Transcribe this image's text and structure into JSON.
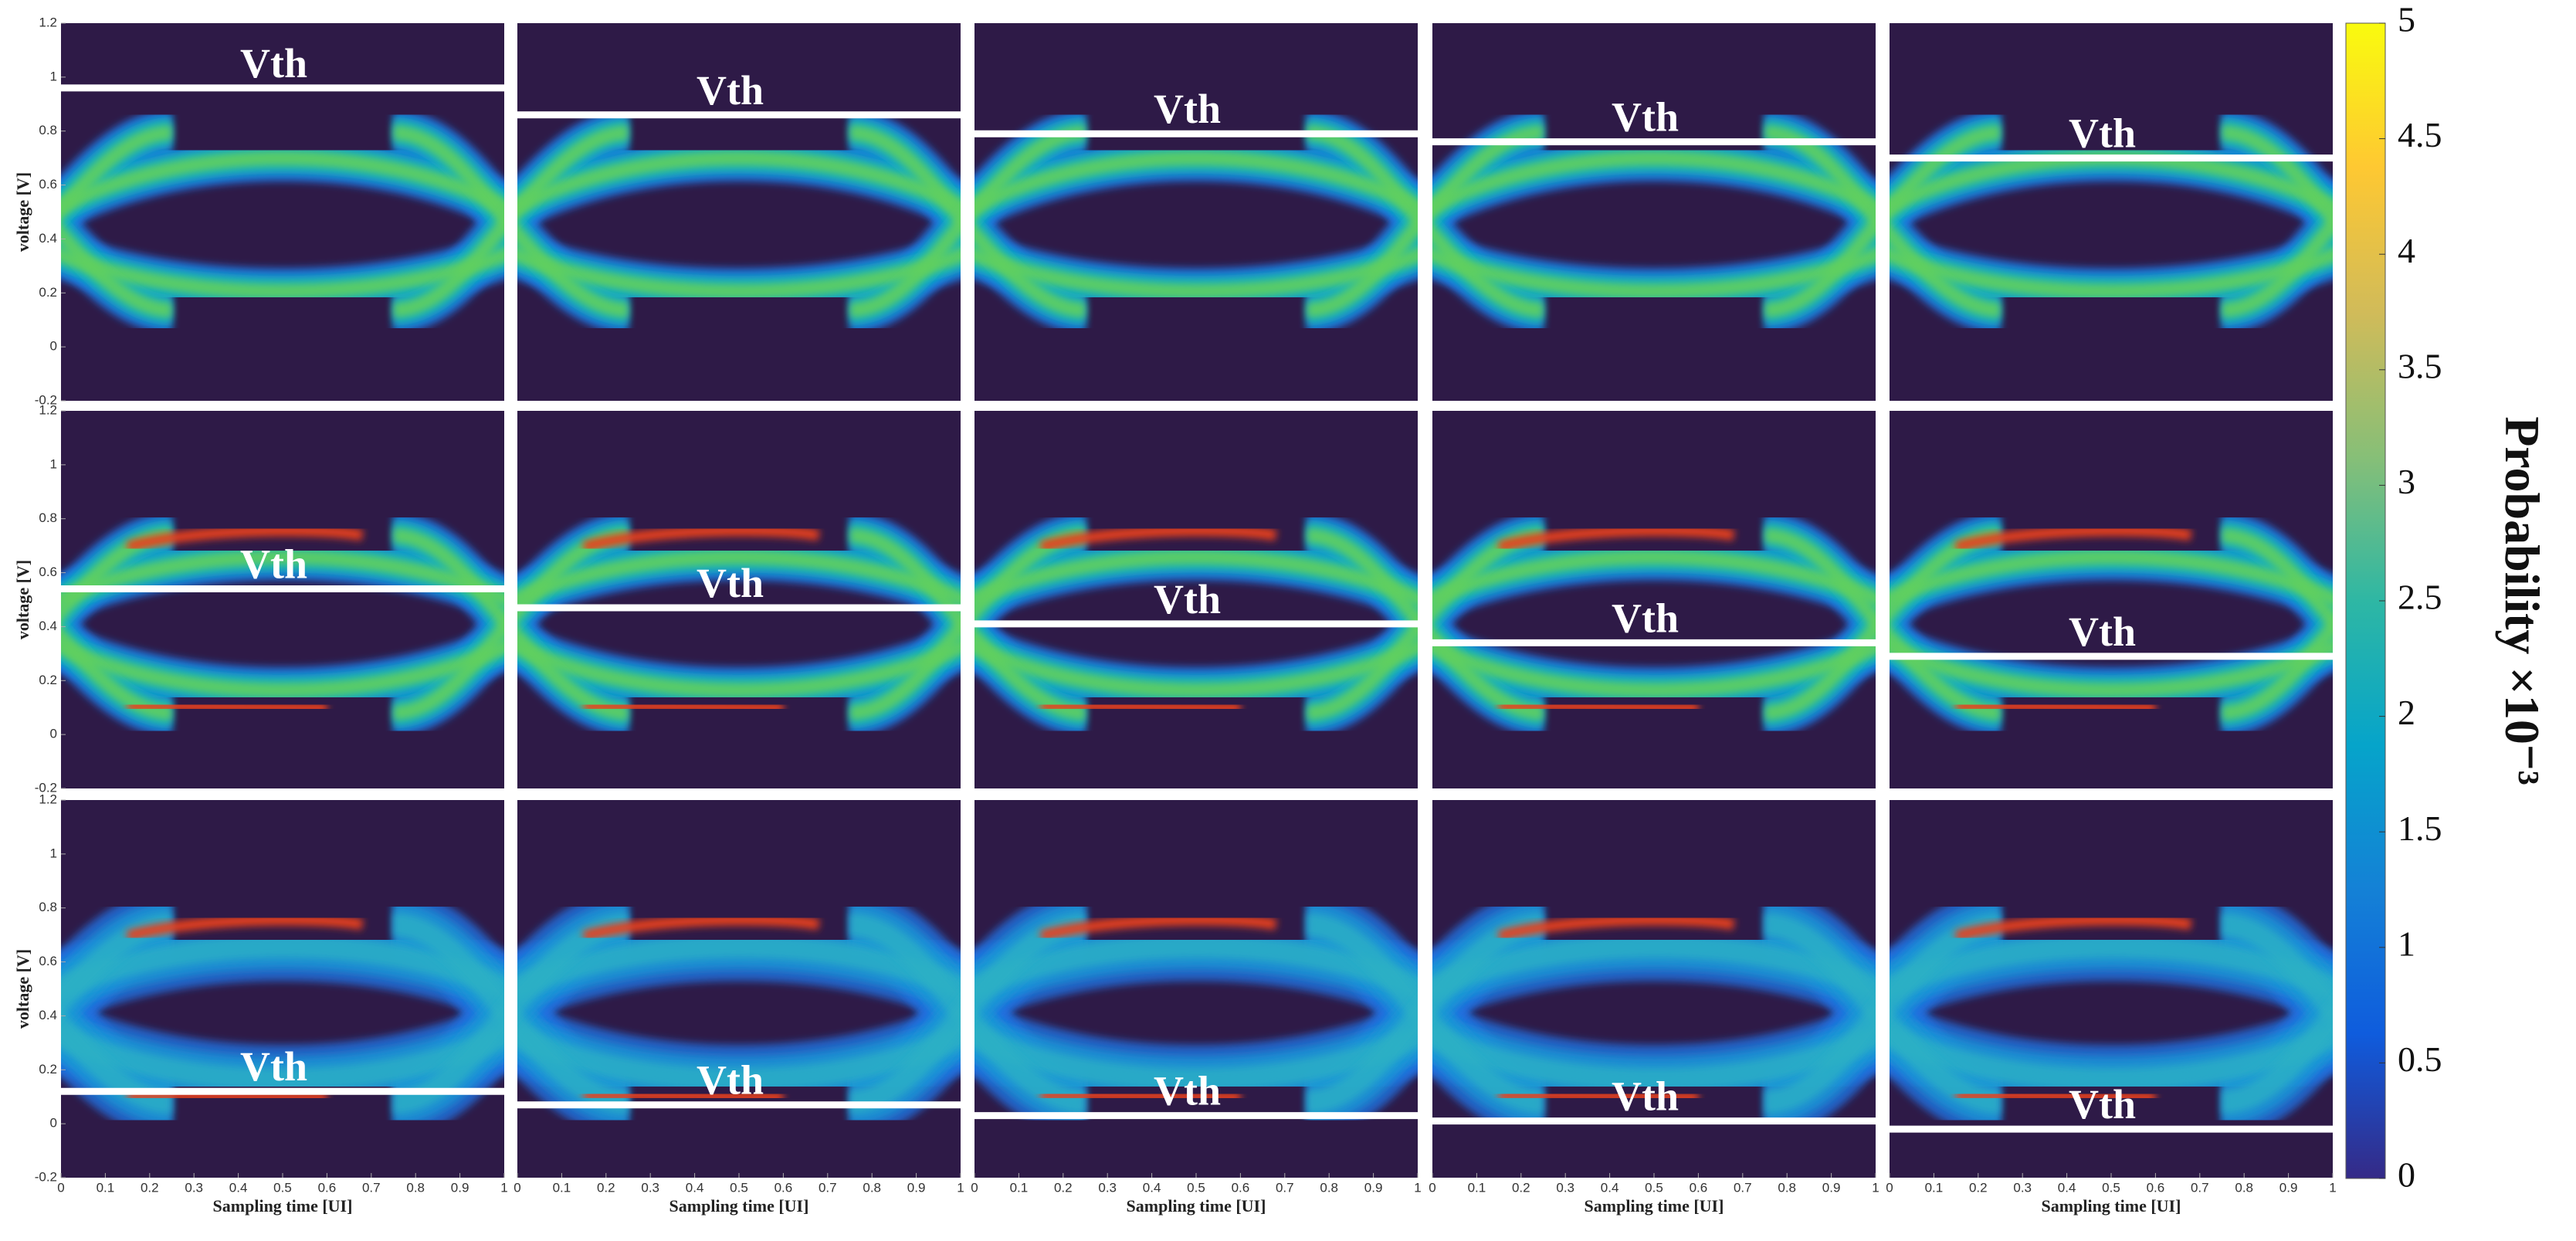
{
  "chart_data": [
    {
      "type": "eye",
      "annotation": "Vth",
      "threshold": 0.96,
      "xlim": [
        0,
        1
      ],
      "ylim": [
        -0.2,
        1.2
      ],
      "ylabel": "voltage [V]",
      "yticks": [
        -0.2,
        0,
        0.2,
        0.4,
        0.6,
        0.8,
        1,
        1.2
      ]
    },
    {
      "type": "eye",
      "annotation": "Vth",
      "threshold": 0.86,
      "xlim": [
        0,
        1
      ],
      "ylim": [
        -0.2,
        1.2
      ]
    },
    {
      "type": "eye",
      "annotation": "Vth",
      "threshold": 0.79,
      "xlim": [
        0,
        1
      ],
      "ylim": [
        -0.2,
        1.2
      ]
    },
    {
      "type": "eye",
      "annotation": "Vth",
      "threshold": 0.76,
      "xlim": [
        0,
        1
      ],
      "ylim": [
        -0.2,
        1.2
      ]
    },
    {
      "type": "eye",
      "annotation": "Vth",
      "threshold": 0.7,
      "xlim": [
        0,
        1
      ],
      "ylim": [
        -0.2,
        1.2
      ]
    },
    {
      "type": "eye",
      "annotation": "Vth",
      "threshold": 0.54,
      "xlim": [
        0,
        1
      ],
      "ylim": [
        -0.2,
        1.2
      ],
      "ylabel": "voltage [V]",
      "yticks": [
        -0.2,
        0,
        0.2,
        0.4,
        0.6,
        0.8,
        1,
        1.2
      ]
    },
    {
      "type": "eye",
      "annotation": "Vth",
      "threshold": 0.47,
      "xlim": [
        0,
        1
      ],
      "ylim": [
        -0.2,
        1.2
      ]
    },
    {
      "type": "eye",
      "annotation": "Vth",
      "threshold": 0.41,
      "xlim": [
        0,
        1
      ],
      "ylim": [
        -0.2,
        1.2
      ]
    },
    {
      "type": "eye",
      "annotation": "Vth",
      "threshold": 0.34,
      "xlim": [
        0,
        1
      ],
      "ylim": [
        -0.2,
        1.2
      ]
    },
    {
      "type": "eye",
      "annotation": "Vth",
      "threshold": 0.29,
      "xlim": [
        0,
        1
      ],
      "ylim": [
        -0.2,
        1.2
      ]
    },
    {
      "type": "eye",
      "annotation": "Vth",
      "threshold": 0.12,
      "xlim": [
        0,
        1
      ],
      "ylim": [
        -0.2,
        1.2
      ],
      "ylabel": "voltage [V]",
      "yticks": [
        -0.2,
        0,
        0.2,
        0.4,
        0.6,
        0.8,
        1,
        1.2
      ],
      "xlabel": "Sampling time [UI]",
      "xticks": [
        0,
        0.1,
        0.2,
        0.3,
        0.4,
        0.5,
        0.6,
        0.7,
        0.8,
        0.9,
        1
      ]
    },
    {
      "type": "eye",
      "annotation": "Vth",
      "threshold": 0.07,
      "xlim": [
        0,
        1
      ],
      "ylim": [
        -0.2,
        1.2
      ],
      "xlabel": "Sampling time [UI]",
      "xticks": [
        0,
        0.1,
        0.2,
        0.3,
        0.4,
        0.5,
        0.6,
        0.7,
        0.8,
        0.9,
        1
      ]
    },
    {
      "type": "eye",
      "annotation": "Vth",
      "threshold": 0.03,
      "xlim": [
        0,
        1
      ],
      "ylim": [
        -0.2,
        1.2
      ],
      "xlabel": "Sampling time [UI]",
      "xticks": [
        0,
        0.1,
        0.2,
        0.3,
        0.4,
        0.5,
        0.6,
        0.7,
        0.8,
        0.9,
        1
      ]
    },
    {
      "type": "eye",
      "annotation": "Vth",
      "threshold": 0.01,
      "xlim": [
        0,
        1
      ],
      "ylim": [
        -0.2,
        1.2
      ],
      "xlabel": "Sampling time [UI]",
      "xticks": [
        0,
        0.1,
        0.2,
        0.3,
        0.4,
        0.5,
        0.6,
        0.7,
        0.8,
        0.9,
        1
      ]
    },
    {
      "type": "eye",
      "annotation": "Vth",
      "threshold": -0.02,
      "xlim": [
        0,
        1
      ],
      "ylim": [
        -0.2,
        1.2
      ],
      "xlabel": "Sampling time [UI]",
      "xticks": [
        0,
        0.1,
        0.2,
        0.3,
        0.4,
        0.5,
        0.6,
        0.7,
        0.8,
        0.9,
        1
      ]
    },
    {
      "type": "colorbar",
      "label": "Probability ×10⁻³",
      "ylim": [
        0,
        5
      ],
      "yticks": [
        0,
        0.5,
        1,
        1.5,
        2,
        2.5,
        3,
        3.5,
        4,
        4.5,
        5
      ],
      "colors": [
        "#352a87",
        "#0f5cdd",
        "#1481d6",
        "#06a4ca",
        "#2eb7a4",
        "#87bf77",
        "#d1bb59",
        "#fec832",
        "#f9fb0e"
      ]
    }
  ]
}
